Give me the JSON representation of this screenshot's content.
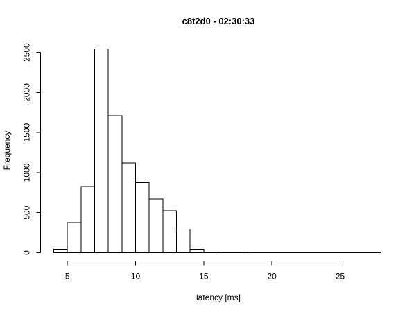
{
  "chart_data": {
    "type": "bar",
    "title": "c8t2d0 - 02:30:33",
    "xlabel": "latency [ms]",
    "ylabel": "Frequency",
    "bin_width": 1,
    "bins": [
      {
        "x0": 4,
        "x1": 5,
        "value": 45
      },
      {
        "x0": 5,
        "x1": 6,
        "value": 375
      },
      {
        "x0": 6,
        "x1": 7,
        "value": 825
      },
      {
        "x0": 7,
        "x1": 8,
        "value": 2545
      },
      {
        "x0": 8,
        "x1": 9,
        "value": 1710
      },
      {
        "x0": 9,
        "x1": 10,
        "value": 1120
      },
      {
        "x0": 10,
        "x1": 11,
        "value": 875
      },
      {
        "x0": 11,
        "x1": 12,
        "value": 670
      },
      {
        "x0": 12,
        "x1": 13,
        "value": 525
      },
      {
        "x0": 13,
        "x1": 14,
        "value": 295
      },
      {
        "x0": 14,
        "x1": 15,
        "value": 45
      },
      {
        "x0": 15,
        "x1": 16,
        "value": 8
      },
      {
        "x0": 16,
        "x1": 17,
        "value": 4
      },
      {
        "x0": 17,
        "x1": 18,
        "value": 3
      },
      {
        "x0": 18,
        "x1": 19,
        "value": 2
      },
      {
        "x0": 19,
        "x1": 20,
        "value": 2
      },
      {
        "x0": 20,
        "x1": 21,
        "value": 1
      },
      {
        "x0": 21,
        "x1": 22,
        "value": 1
      },
      {
        "x0": 22,
        "x1": 23,
        "value": 1
      },
      {
        "x0": 23,
        "x1": 24,
        "value": 1
      },
      {
        "x0": 24,
        "x1": 25,
        "value": 1
      },
      {
        "x0": 25,
        "x1": 26,
        "value": 1
      },
      {
        "x0": 26,
        "x1": 27,
        "value": 1
      },
      {
        "x0": 27,
        "x1": 28,
        "value": 1
      }
    ],
    "xlim": [
      4,
      28
    ],
    "ylim": [
      0,
      2545
    ],
    "x_ticks": [
      5,
      10,
      15,
      20,
      25
    ],
    "y_ticks": [
      0,
      500,
      1000,
      1500,
      2000,
      2500
    ],
    "grid": false,
    "legend": "none"
  }
}
